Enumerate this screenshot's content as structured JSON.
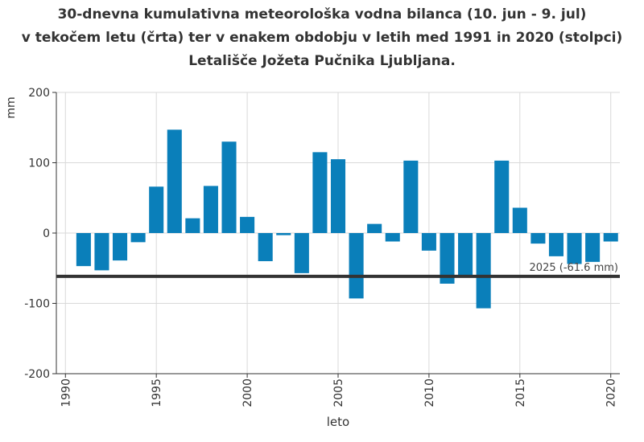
{
  "chart_data": {
    "type": "bar",
    "title_lines": [
      "30-dnevna kumulativna meteorološka vodna bilanca (10. jun - 9. jul)",
      "v tekočem letu (črta) ter v enakem obdobju v letih med 1991 in 2020 (stolpci)",
      "Letališče Jožeta Pučnika Ljubljana."
    ],
    "xlabel": "leto",
    "ylabel": "mm",
    "ylim": [
      -200,
      200
    ],
    "xlim": [
      1989.5,
      2020.5
    ],
    "yticks": [
      -200,
      -100,
      0,
      100,
      200
    ],
    "yticklabels": [
      "-200",
      "-100",
      "0",
      "100",
      "200"
    ],
    "xticks": [
      1990,
      1995,
      2000,
      2005,
      2010,
      2015,
      2020
    ],
    "xticklabels": [
      "1990",
      "1995",
      "2000",
      "2005",
      "2010",
      "2015",
      "2020"
    ],
    "grid": true,
    "bar_color": "#0a7fba",
    "years": [
      1991,
      1992,
      1993,
      1994,
      1995,
      1996,
      1997,
      1998,
      1999,
      2000,
      2001,
      2002,
      2003,
      2004,
      2005,
      2006,
      2007,
      2008,
      2009,
      2010,
      2011,
      2012,
      2013,
      2014,
      2015,
      2016,
      2017,
      2018,
      2019,
      2020
    ],
    "values": [
      -47,
      -53,
      -39,
      -13,
      66,
      147,
      21,
      67,
      130,
      23,
      -40,
      -3,
      -57,
      115,
      105,
      -93,
      13,
      -12,
      103,
      -25,
      -72,
      -61,
      -107,
      103,
      36,
      -15,
      -33,
      -44,
      -41,
      -12
    ],
    "reference_line": {
      "value": -61.6,
      "label": "2025 (-61.6 mm)",
      "color": "#333333"
    }
  }
}
